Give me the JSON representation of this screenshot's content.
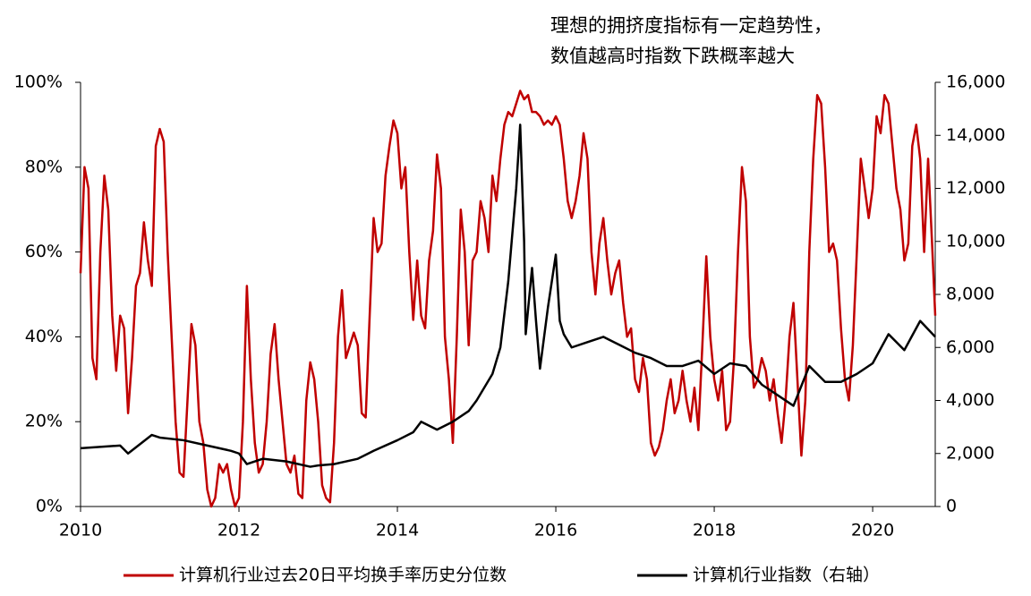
{
  "chart_data": {
    "type": "line",
    "annotation": [
      "理想的拥挤度指标有一定趋势性，",
      "数值越高时指数下跌概率越大"
    ],
    "xlim": [
      2010,
      2020.79
    ],
    "xticks": [
      2010,
      2012,
      2014,
      2016,
      2018,
      2020
    ],
    "ylim": [
      0,
      100
    ],
    "yticks": [
      {
        "value": 0,
        "label": "0%"
      },
      {
        "value": 20,
        "label": "20%"
      },
      {
        "value": 40,
        "label": "40%"
      },
      {
        "value": 60,
        "label": "60%"
      },
      {
        "value": 80,
        "label": "80%"
      },
      {
        "value": 100,
        "label": "100%"
      }
    ],
    "y2lim": [
      0,
      16000
    ],
    "y2ticks": [
      0,
      {
        "value": 2000,
        "label": "2,000"
      },
      {
        "value": 4000,
        "label": "4,000"
      },
      {
        "value": 6000,
        "label": "6,000"
      },
      {
        "value": 8000,
        "label": "8,000"
      },
      {
        "value": 10000,
        "label": "10,000"
      },
      {
        "value": 12000,
        "label": "12,000"
      },
      {
        "value": 14000,
        "label": "14,000"
      },
      {
        "value": 16000,
        "label": "16,000"
      }
    ],
    "series": [
      {
        "name": "计算机行业过去20日平均换手率历史分位数",
        "color": "#c00000",
        "x": [
          2010,
          2010.05,
          2010.1,
          2010.15,
          2010.2,
          2010.25,
          2010.3,
          2010.35,
          2010.4,
          2010.45,
          2010.5,
          2010.55,
          2010.6,
          2010.65,
          2010.7,
          2010.75,
          2010.8,
          2010.85,
          2010.9,
          2010.95,
          2011,
          2011.05,
          2011.1,
          2011.15,
          2011.2,
          2011.25,
          2011.3,
          2011.35,
          2011.4,
          2011.45,
          2011.5,
          2011.55,
          2011.6,
          2011.65,
          2011.7,
          2011.75,
          2011.8,
          2011.85,
          2011.9,
          2011.95,
          2012,
          2012.05,
          2012.1,
          2012.15,
          2012.2,
          2012.25,
          2012.3,
          2012.35,
          2012.4,
          2012.45,
          2012.5,
          2012.55,
          2012.6,
          2012.65,
          2012.7,
          2012.75,
          2012.8,
          2012.85,
          2012.9,
          2012.95,
          2013,
          2013.05,
          2013.1,
          2013.15,
          2013.2,
          2013.25,
          2013.3,
          2013.35,
          2013.4,
          2013.45,
          2013.5,
          2013.55,
          2013.6,
          2013.65,
          2013.7,
          2013.75,
          2013.8,
          2013.85,
          2013.9,
          2013.95,
          2014,
          2014.05,
          2014.1,
          2014.15,
          2014.2,
          2014.25,
          2014.3,
          2014.35,
          2014.4,
          2014.45,
          2014.5,
          2014.55,
          2014.6,
          2014.65,
          2014.7,
          2014.75,
          2014.8,
          2014.85,
          2014.9,
          2014.95,
          2015,
          2015.05,
          2015.1,
          2015.15,
          2015.2,
          2015.25,
          2015.3,
          2015.35,
          2015.4,
          2015.45,
          2015.5,
          2015.55,
          2015.6,
          2015.65,
          2015.7,
          2015.75,
          2015.8,
          2015.85,
          2015.9,
          2015.95,
          2016,
          2016.05,
          2016.1,
          2016.15,
          2016.2,
          2016.25,
          2016.3,
          2016.35,
          2016.4,
          2016.45,
          2016.5,
          2016.55,
          2016.6,
          2016.65,
          2016.7,
          2016.75,
          2016.8,
          2016.85,
          2016.9,
          2016.95,
          2017,
          2017.05,
          2017.1,
          2017.15,
          2017.2,
          2017.25,
          2017.3,
          2017.35,
          2017.4,
          2017.45,
          2017.5,
          2017.55,
          2017.6,
          2017.65,
          2017.7,
          2017.75,
          2017.8,
          2017.85,
          2017.9,
          2017.95,
          2018,
          2018.05,
          2018.1,
          2018.15,
          2018.2,
          2018.25,
          2018.3,
          2018.35,
          2018.4,
          2018.45,
          2018.5,
          2018.55,
          2018.6,
          2018.65,
          2018.7,
          2018.75,
          2018.8,
          2018.85,
          2018.9,
          2018.95,
          2019,
          2019.05,
          2019.1,
          2019.15,
          2019.2,
          2019.25,
          2019.3,
          2019.35,
          2019.4,
          2019.45,
          2019.5,
          2019.55,
          2019.6,
          2019.65,
          2019.7,
          2019.75,
          2019.8,
          2019.85,
          2019.9,
          2019.95,
          2020,
          2020.05,
          2020.1,
          2020.15,
          2020.2,
          2020.25,
          2020.3,
          2020.35,
          2020.4,
          2020.45,
          2020.5,
          2020.55,
          2020.6,
          2020.65,
          2020.7,
          2020.75,
          2020.79
        ],
        "values": [
          55,
          80,
          75,
          35,
          30,
          60,
          78,
          70,
          45,
          32,
          45,
          42,
          22,
          35,
          52,
          55,
          67,
          58,
          52,
          85,
          89,
          86,
          60,
          40,
          20,
          8,
          7,
          25,
          43,
          38,
          20,
          15,
          4,
          0,
          2,
          10,
          8,
          10,
          4,
          0,
          2,
          20,
          52,
          30,
          15,
          8,
          10,
          20,
          36,
          43,
          30,
          20,
          10,
          8,
          12,
          3,
          2,
          25,
          34,
          30,
          20,
          5,
          2,
          1,
          15,
          40,
          51,
          35,
          38,
          41,
          38,
          22,
          21,
          45,
          68,
          60,
          62,
          78,
          85,
          91,
          88,
          75,
          80,
          60,
          44,
          58,
          45,
          42,
          58,
          65,
          83,
          75,
          40,
          30,
          15,
          40,
          70,
          60,
          38,
          58,
          60,
          72,
          68,
          60,
          78,
          72,
          82,
          90,
          93,
          92,
          95,
          98,
          96,
          97,
          93,
          93,
          92,
          90,
          91,
          90,
          92,
          90,
          82,
          72,
          68,
          72,
          78,
          88,
          82,
          60,
          50,
          62,
          68,
          58,
          50,
          55,
          58,
          48,
          40,
          42,
          30,
          27,
          35,
          30,
          15,
          12,
          14,
          18,
          25,
          30,
          22,
          25,
          32,
          25,
          20,
          28,
          18,
          38,
          59,
          40,
          30,
          25,
          32,
          18,
          20,
          35,
          60,
          80,
          72,
          40,
          28,
          30,
          35,
          32,
          25,
          30,
          22,
          15,
          25,
          40,
          48,
          30,
          12,
          25,
          60,
          82,
          97,
          95,
          80,
          60,
          62,
          58,
          42,
          30,
          25,
          38,
          60,
          82,
          75,
          68,
          75,
          92,
          88,
          97,
          95,
          85,
          75,
          70,
          58,
          62,
          85,
          90,
          82,
          60,
          82,
          62,
          45
        ]
      },
      {
        "name": "计算机行业指数（右轴）",
        "color": "#000000",
        "axis": "y2",
        "x": [
          2010,
          2010.5,
          2010.6,
          2010.9,
          2011,
          2011.3,
          2011.6,
          2011.9,
          2012,
          2012.1,
          2012.3,
          2012.6,
          2012.9,
          2013,
          2013.2,
          2013.5,
          2013.7,
          2014,
          2014.2,
          2014.3,
          2014.5,
          2014.7,
          2014.9,
          2015,
          2015.2,
          2015.3,
          2015.4,
          2015.5,
          2015.55,
          2015.6,
          2015.62,
          2015.7,
          2015.75,
          2015.8,
          2015.9,
          2016,
          2016.05,
          2016.1,
          2016.2,
          2016.4,
          2016.6,
          2016.8,
          2017,
          2017.2,
          2017.4,
          2017.6,
          2017.8,
          2018,
          2018.2,
          2018.4,
          2018.6,
          2018.8,
          2019,
          2019.2,
          2019.4,
          2019.6,
          2019.8,
          2020,
          2020.2,
          2020.4,
          2020.6,
          2020.79
        ],
        "values": [
          2200,
          2300,
          2000,
          2700,
          2600,
          2500,
          2300,
          2100,
          2000,
          1600,
          1800,
          1700,
          1500,
          1550,
          1600,
          1800,
          2100,
          2500,
          2800,
          3200,
          2900,
          3200,
          3600,
          4000,
          5000,
          6000,
          8500,
          12000,
          14400,
          10000,
          6500,
          9000,
          7000,
          5200,
          7500,
          9500,
          7000,
          6500,
          6000,
          6200,
          6400,
          6100,
          5800,
          5600,
          5300,
          5300,
          5500,
          5000,
          5400,
          5300,
          4600,
          4200,
          3800,
          5300,
          4700,
          4700,
          5000,
          5400,
          6500,
          5900,
          7000,
          6400
        ]
      }
    ]
  }
}
